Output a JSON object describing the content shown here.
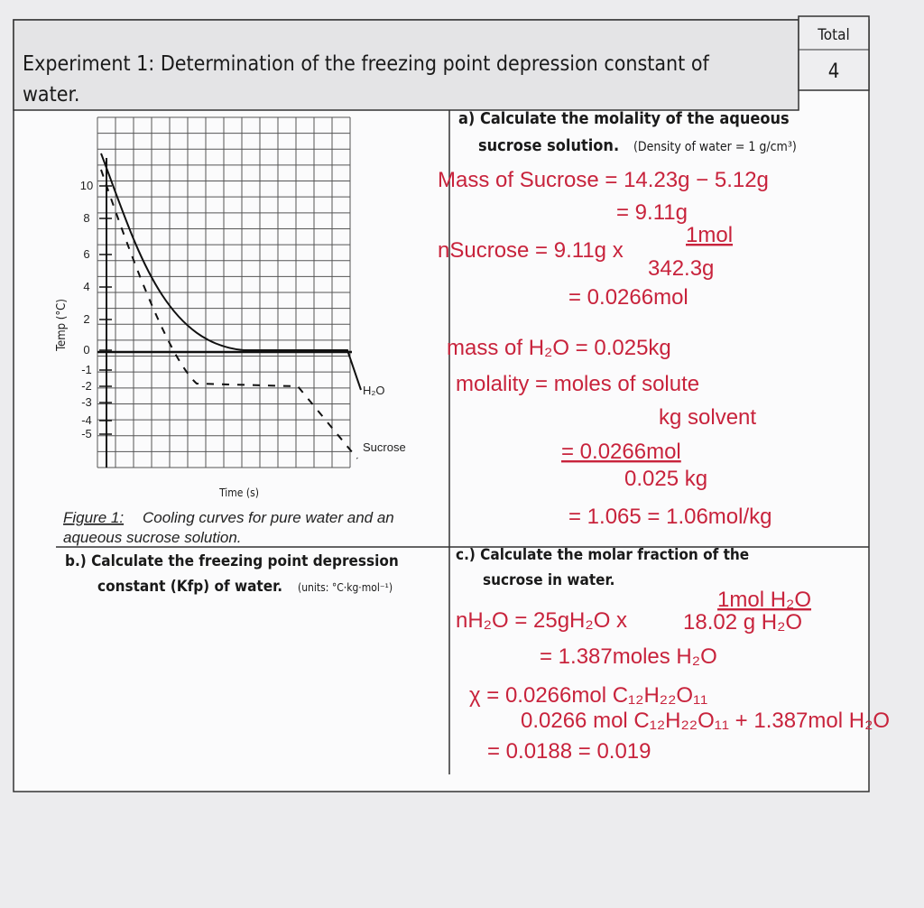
{
  "header": {
    "title_line1": "Experiment 1: Determination of the freezing point depression constant of",
    "title_line2": "water.",
    "total_label": "Total",
    "total_value": "4"
  },
  "figure": {
    "y_axis_label": "Temp (°C)",
    "x_axis_label": "Time (s)",
    "y_tick_labels": [
      "10",
      "8",
      "6",
      "4",
      "2",
      "0",
      "-1",
      "-2",
      "-3",
      "-4",
      "-5"
    ],
    "curve_labels": [
      "H₂O",
      "Sucrose"
    ],
    "caption_prefix": "Figure 1:",
    "caption_line1": "Cooling curves for pure water and an",
    "caption_line2": "aqueous sucrose solution."
  },
  "part_a": {
    "question_line1": "a)  Calculate the molality of the aqueous",
    "question_line2": "sucrose solution.",
    "note": "(Density of water = 1 g/cm³)",
    "work": [
      "Mass of Sucrose = 14.23g − 5.12g",
      "= 9.11g",
      "nSucrose = 9.11g x",
      "1mol",
      "342.3g",
      "= 0.0266mol",
      "mass of H₂O = 0.025kg",
      "molality = moles of solute",
      "kg solvent",
      "= 0.0266mol",
      "0.025 kg",
      "= 1.065  = 1.06mol/kg"
    ]
  },
  "part_b": {
    "question_line1": "b.) Calculate the freezing point depression",
    "question_line2": "constant (Kfp) of water.",
    "units": "(units: °C·kg·mol⁻¹)"
  },
  "part_c": {
    "question_line1": "c.) Calculate  the  molar  fraction  of  the",
    "question_line2": "sucrose in water.",
    "work": [
      "nH₂O = 25gH₂O x",
      "1mol H₂O",
      "18.02 g H₂O",
      "= 1.387moles H₂O",
      "χ = 0.0266mol C₁₂H₂₂O₁₁",
      "0.0266 mol C₁₂H₂₂O₁₁ + 1.387mol H₂O",
      "= 0.0188  = 0.019"
    ]
  }
}
